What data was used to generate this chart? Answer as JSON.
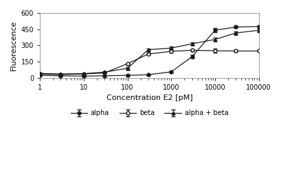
{
  "title": "",
  "xlabel": "Concentration E2 [pM]",
  "ylabel": "Fluorescence",
  "xlim": [
    1,
    100000
  ],
  "ylim": [
    0,
    600
  ],
  "yticks": [
    0,
    150,
    300,
    450,
    600
  ],
  "alpha_x": [
    1,
    3,
    10,
    30,
    100,
    300,
    1000,
    3000,
    10000,
    30000,
    100000
  ],
  "alpha_y": [
    22,
    18,
    15,
    18,
    22,
    28,
    55,
    195,
    440,
    470,
    475
  ],
  "alpha_yerr": [
    4,
    3,
    3,
    3,
    3,
    4,
    8,
    15,
    18,
    12,
    12
  ],
  "beta_x": [
    1,
    3,
    10,
    30,
    100,
    300,
    1000,
    3000,
    10000,
    30000,
    100000
  ],
  "beta_y": [
    35,
    30,
    35,
    45,
    130,
    220,
    245,
    255,
    250,
    248,
    248
  ],
  "beta_yerr": [
    6,
    5,
    5,
    6,
    10,
    10,
    10,
    10,
    18,
    8,
    6
  ],
  "ab_x": [
    1,
    3,
    10,
    30,
    100,
    300,
    1000,
    3000,
    10000,
    30000,
    100000
  ],
  "ab_y": [
    40,
    35,
    38,
    52,
    88,
    260,
    275,
    315,
    355,
    415,
    440
  ],
  "ab_yerr": [
    6,
    5,
    5,
    6,
    8,
    12,
    12,
    12,
    15,
    15,
    15
  ],
  "line_color": "#1a1a1a",
  "bg_color": "#ffffff"
}
